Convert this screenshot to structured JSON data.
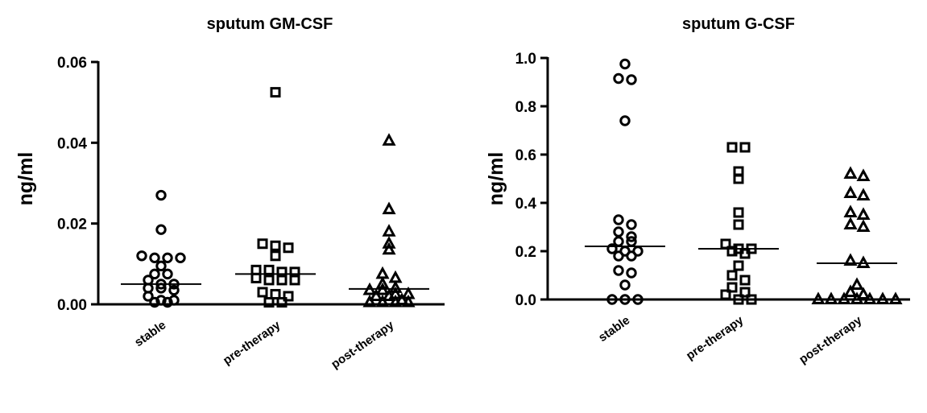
{
  "chart_data": [
    {
      "type": "scatter",
      "title": "sputum GM-CSF",
      "ylabel": "ng/ml",
      "xlabel": "",
      "ylim": [
        0,
        0.06
      ],
      "yticks": [
        "0.00",
        "0.02",
        "0.04",
        "0.06"
      ],
      "categories": [
        "stable",
        "pre-therapy",
        "post-therapy"
      ],
      "grid": false,
      "series": [
        {
          "category": "stable",
          "marker": "circle",
          "median": 0.005,
          "values": [
            0.027,
            0.0185,
            0.012,
            0.0115,
            0.0115,
            0.0115,
            0.0095,
            0.0075,
            0.0075,
            0.006,
            0.005,
            0.005,
            0.004,
            0.004,
            0.0035,
            0.002,
            0.001,
            0.001,
            0.0005,
            0.0005
          ]
        },
        {
          "category": "pre-therapy",
          "marker": "square",
          "median": 0.0075,
          "values": [
            0.0525,
            0.015,
            0.014,
            0.0145,
            0.012,
            0.0085,
            0.0085,
            0.008,
            0.008,
            0.0065,
            0.006,
            0.006,
            0.006,
            0.003,
            0.0025,
            0.002,
            0.0005,
            0.0005
          ]
        },
        {
          "category": "post-therapy",
          "marker": "triangle",
          "median": 0.0038,
          "values": [
            0.0405,
            0.0235,
            0.018,
            0.015,
            0.0135,
            0.0075,
            0.0065,
            0.005,
            0.004,
            0.0035,
            0.0035,
            0.0025,
            0.0025,
            0.002,
            0.002,
            0.001,
            0.0005,
            0.0005,
            0.0005,
            0.0005
          ]
        }
      ]
    },
    {
      "type": "scatter",
      "title": "sputum G-CSF",
      "ylabel": "ng/ml",
      "xlabel": "",
      "ylim": [
        0,
        1.0
      ],
      "yticks": [
        "0.0",
        "0.2",
        "0.4",
        "0.6",
        "0.8",
        "1.0"
      ],
      "categories": [
        "stable",
        "pre-therapy",
        "post-therapy"
      ],
      "grid": false,
      "series": [
        {
          "category": "stable",
          "marker": "circle",
          "median": 0.22,
          "values": [
            0.975,
            0.91,
            0.915,
            0.74,
            0.33,
            0.31,
            0.28,
            0.26,
            0.24,
            0.24,
            0.21,
            0.2,
            0.2,
            0.18,
            0.18,
            0.12,
            0.11,
            0.06,
            0.0,
            0.0,
            0.0
          ]
        },
        {
          "category": "pre-therapy",
          "marker": "square",
          "median": 0.21,
          "values": [
            0.63,
            0.63,
            0.53,
            0.5,
            0.36,
            0.31,
            0.23,
            0.21,
            0.21,
            0.2,
            0.19,
            0.14,
            0.1,
            0.08,
            0.05,
            0.03,
            0.02,
            0.0,
            0.0
          ]
        },
        {
          "category": "post-therapy",
          "marker": "triangle",
          "median": 0.15,
          "values": [
            0.52,
            0.51,
            0.44,
            0.43,
            0.36,
            0.35,
            0.31,
            0.3,
            0.16,
            0.15,
            0.06,
            0.03,
            0.02,
            0.0,
            0.0,
            0.0,
            0.0,
            0.0,
            0.0,
            0.0
          ]
        }
      ]
    }
  ]
}
